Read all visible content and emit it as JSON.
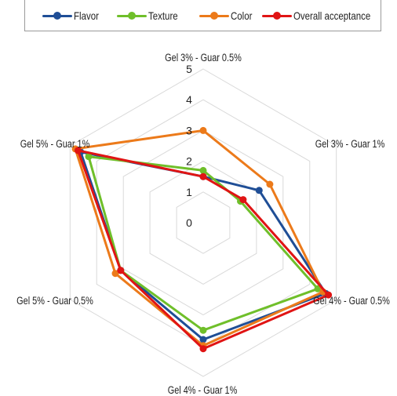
{
  "chart_data": {
    "type": "radar",
    "categories": [
      "Gel 3% - Guar 0.5%",
      "Gel 3% - Guar 1%",
      "Gel 4% - Guar 0.5%",
      "Gel 4% - Guar 1%",
      "Gel 5% - Guar 0.5%",
      "Gel 5% - Guar 1%"
    ],
    "ticks": [
      0,
      1,
      2,
      3,
      4,
      5
    ],
    "rlim": [
      0,
      5
    ],
    "legend_position": "top",
    "series": [
      {
        "name": "Flavor",
        "color": "#1f4e96",
        "values": [
          1.5,
          2.1,
          4.6,
          3.8,
          3.1,
          4.6
        ]
      },
      {
        "name": "Texture",
        "color": "#6fbf2a",
        "values": [
          1.7,
          1.4,
          4.3,
          3.5,
          3.1,
          4.3
        ]
      },
      {
        "name": "Color",
        "color": "#ec7a1a",
        "values": [
          3.0,
          2.5,
          4.5,
          4.0,
          3.3,
          4.8
        ]
      },
      {
        "name": "Overall acceptance",
        "color": "#e01414",
        "values": [
          1.5,
          1.5,
          4.7,
          4.1,
          3.1,
          4.7
        ]
      }
    ]
  }
}
